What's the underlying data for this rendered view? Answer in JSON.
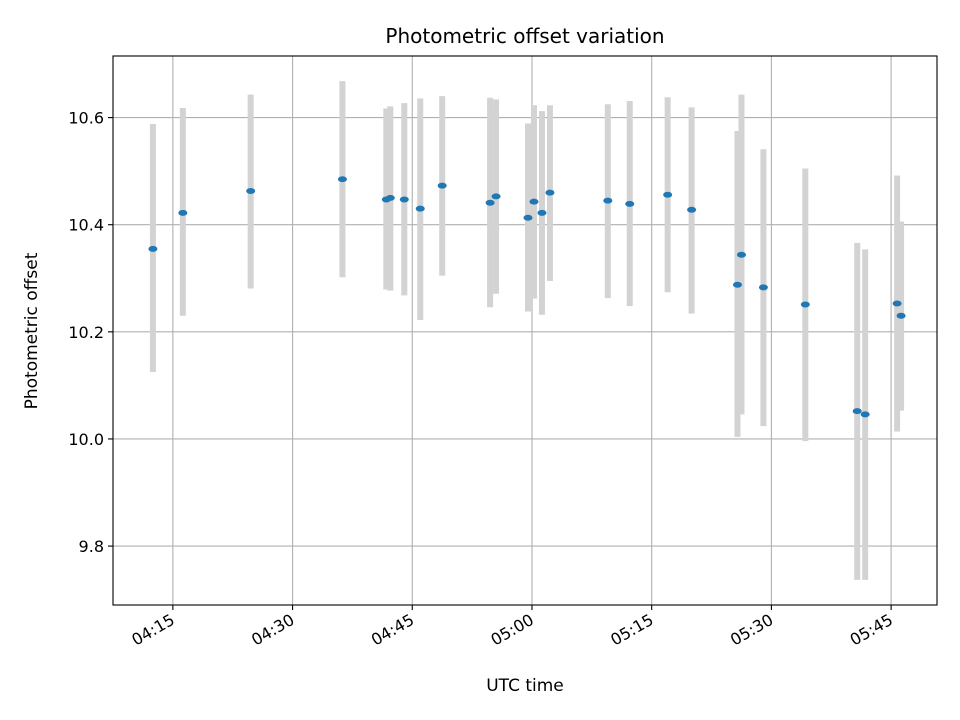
{
  "chart_data": {
    "type": "scatter",
    "title": "Photometric offset variation",
    "xlabel": "UTC time",
    "ylabel": "Photometric offset",
    "x_ticks": [
      "04:15",
      "04:30",
      "04:45",
      "05:00",
      "05:15",
      "05:30",
      "05:45"
    ],
    "y_ticks": [
      "9.8",
      "10.0",
      "10.2",
      "10.4",
      "10.6"
    ],
    "ylim": [
      9.69,
      10.715
    ],
    "xlim": [
      "04:07:30",
      "05:50:45"
    ],
    "grid": true,
    "marker_color": "#1f77b4",
    "errorbar_color": "#d3d3d3",
    "points": [
      {
        "x": "04:12:30",
        "y": 10.355,
        "ylo": 10.125,
        "yhi": 10.588
      },
      {
        "x": "04:16:15",
        "y": 10.422,
        "ylo": 10.23,
        "yhi": 10.618
      },
      {
        "x": "04:24:45",
        "y": 10.463,
        "ylo": 10.281,
        "yhi": 10.643
      },
      {
        "x": "04:36:15",
        "y": 10.485,
        "ylo": 10.302,
        "yhi": 10.668
      },
      {
        "x": "04:41:45",
        "y": 10.447,
        "ylo": 10.279,
        "yhi": 10.617
      },
      {
        "x": "04:42:15",
        "y": 10.45,
        "ylo": 10.277,
        "yhi": 10.621
      },
      {
        "x": "04:44:00",
        "y": 10.447,
        "ylo": 10.268,
        "yhi": 10.627
      },
      {
        "x": "04:46:00",
        "y": 10.43,
        "ylo": 10.222,
        "yhi": 10.636
      },
      {
        "x": "04:48:45",
        "y": 10.473,
        "ylo": 10.305,
        "yhi": 10.64
      },
      {
        "x": "04:54:45",
        "y": 10.441,
        "ylo": 10.246,
        "yhi": 10.637
      },
      {
        "x": "04:55:30",
        "y": 10.453,
        "ylo": 10.271,
        "yhi": 10.634
      },
      {
        "x": "04:59:30",
        "y": 10.413,
        "ylo": 10.238,
        "yhi": 10.589
      },
      {
        "x": "05:00:15",
        "y": 10.443,
        "ylo": 10.262,
        "yhi": 10.623
      },
      {
        "x": "05:01:15",
        "y": 10.422,
        "ylo": 10.232,
        "yhi": 10.612
      },
      {
        "x": "05:02:15",
        "y": 10.46,
        "ylo": 10.295,
        "yhi": 10.623
      },
      {
        "x": "05:09:30",
        "y": 10.445,
        "ylo": 10.263,
        "yhi": 10.625
      },
      {
        "x": "05:12:15",
        "y": 10.439,
        "ylo": 10.248,
        "yhi": 10.631
      },
      {
        "x": "05:17:00",
        "y": 10.456,
        "ylo": 10.274,
        "yhi": 10.638
      },
      {
        "x": "05:20:00",
        "y": 10.428,
        "ylo": 10.234,
        "yhi": 10.619
      },
      {
        "x": "05:25:45",
        "y": 10.288,
        "ylo": 10.004,
        "yhi": 10.575
      },
      {
        "x": "05:26:15",
        "y": 10.344,
        "ylo": 10.046,
        "yhi": 10.643
      },
      {
        "x": "05:29:00",
        "y": 10.283,
        "ylo": 10.024,
        "yhi": 10.541
      },
      {
        "x": "05:34:15",
        "y": 10.251,
        "ylo": 9.996,
        "yhi": 10.505
      },
      {
        "x": "05:40:45",
        "y": 10.052,
        "ylo": 9.737,
        "yhi": 10.366
      },
      {
        "x": "05:41:45",
        "y": 10.046,
        "ylo": 9.737,
        "yhi": 10.354
      },
      {
        "x": "05:45:45",
        "y": 10.253,
        "ylo": 10.014,
        "yhi": 10.492
      },
      {
        "x": "05:46:15",
        "y": 10.23,
        "ylo": 10.053,
        "yhi": 10.406
      }
    ]
  }
}
